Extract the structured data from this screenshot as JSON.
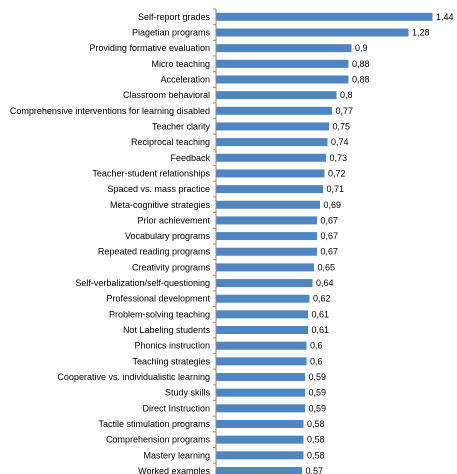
{
  "chart_data": {
    "type": "bar",
    "orientation": "horizontal",
    "categories": [
      "Self-report grades",
      "Piagetian programs",
      "Providing formative evaluation",
      "Micro teaching",
      "Acceleration",
      "Classroom behavioral",
      "Comprehensive interventions for learning disabled",
      "Teacher clarity",
      "Reciprocal teaching",
      "Feedback",
      "Teacher-student relationships",
      "Spaced vs. mass practice",
      "Meta-cognitive strategies",
      "Prior achievement",
      "Vocabulary programs",
      "Repeated reading programs",
      "Creativity programs",
      "Self-verbalization/self-questioning",
      "Professional development",
      "Problem-solving teaching",
      "Not Labeling students",
      "Phonics instruction",
      "Teaching strategies",
      "Cooperative vs. individualistic learning",
      "Study skills",
      "Direct Instruction",
      "Tactile stimulation programs",
      "Comprehension programs",
      "Mastery learning",
      "Worked examples"
    ],
    "values": [
      1.44,
      1.28,
      0.9,
      0.88,
      0.88,
      0.8,
      0.77,
      0.75,
      0.74,
      0.73,
      0.72,
      0.71,
      0.69,
      0.67,
      0.67,
      0.67,
      0.65,
      0.64,
      0.62,
      0.61,
      0.61,
      0.6,
      0.6,
      0.59,
      0.59,
      0.59,
      0.58,
      0.58,
      0.58,
      0.57
    ],
    "value_labels": [
      "1,44",
      "1,28",
      "0,9",
      "0,88",
      "0,88",
      "0,8",
      "0,77",
      "0,75",
      "0,74",
      "0,73",
      "0,72",
      "0,71",
      "0,69",
      "0,67",
      "0,67",
      "0,67",
      "0,65",
      "0,64",
      "0,62",
      "0,61",
      "0,61",
      "0,6",
      "0,6",
      "0,59",
      "0,59",
      "0,59",
      "0,58",
      "0,58",
      "0,58",
      "0,57"
    ],
    "xlim": [
      0,
      1.6
    ],
    "grid": false,
    "legend": "none",
    "bar_color": "#4f86c1"
  }
}
